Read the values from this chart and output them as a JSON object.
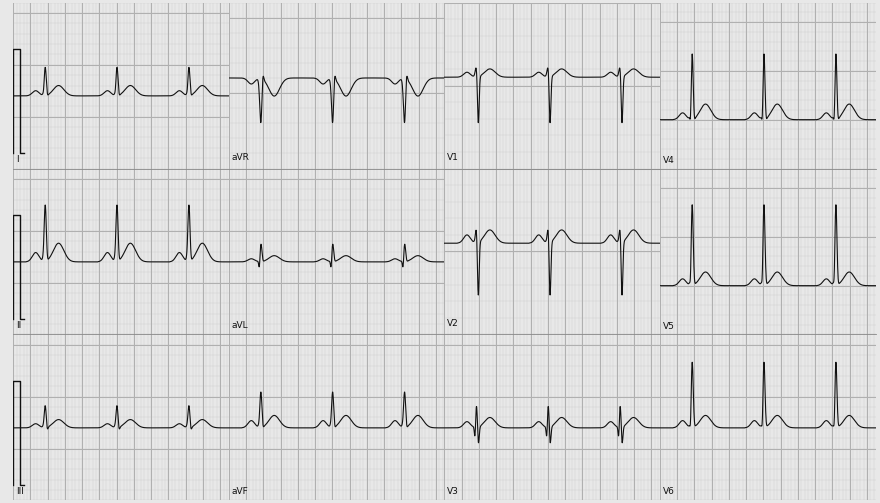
{
  "background_color": "#e8e8e8",
  "grid_major_color": "#b0b0b0",
  "grid_minor_color": "#d0d0d0",
  "line_color": "#111111",
  "label_color": "#111111",
  "fig_width": 8.8,
  "fig_height": 5.03,
  "dpi": 100,
  "rows": 3,
  "cols": 4,
  "leads": [
    [
      "I",
      "aVR",
      "V1",
      "V4"
    ],
    [
      "II",
      "aVL",
      "V2",
      "V5"
    ],
    [
      "III",
      "aVF",
      "V3",
      "V6"
    ]
  ],
  "sample_rate": 500,
  "duration": 10.0,
  "heart_rate": 72
}
